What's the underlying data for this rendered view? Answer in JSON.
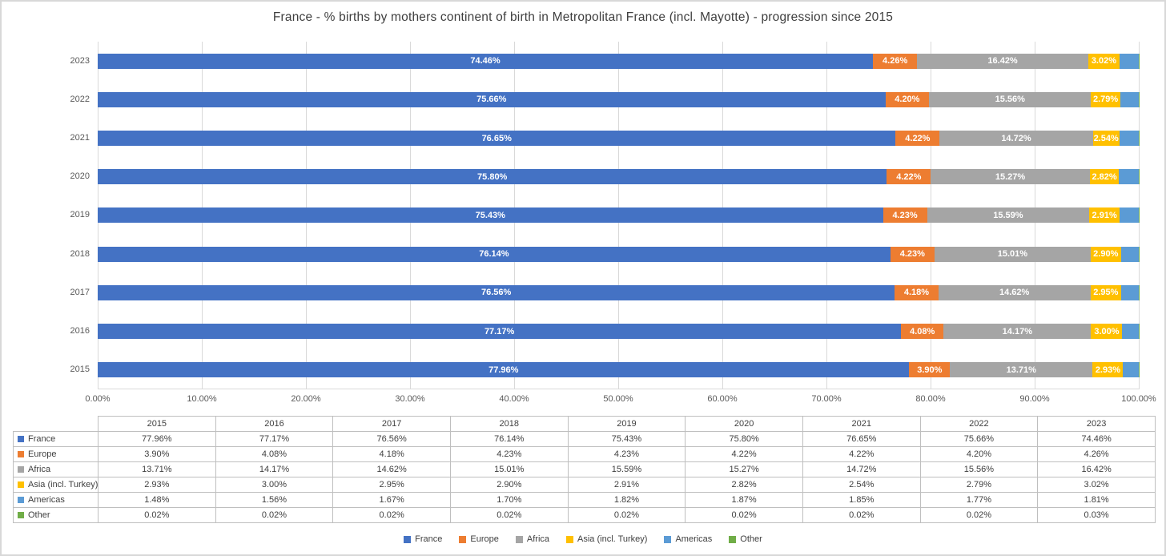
{
  "chart_data": {
    "type": "bar",
    "orientation": "horizontal",
    "stacked": true,
    "title": "France - % births by mothers continent of birth in Metropolitan France (incl. Mayotte) - progression since 2015",
    "categories": [
      "2023",
      "2022",
      "2021",
      "2020",
      "2019",
      "2018",
      "2017",
      "2016",
      "2015"
    ],
    "years": [
      "2015",
      "2016",
      "2017",
      "2018",
      "2019",
      "2020",
      "2021",
      "2022",
      "2023"
    ],
    "x_axis": {
      "ticks": [
        "0.00%",
        "10.00%",
        "20.00%",
        "30.00%",
        "40.00%",
        "50.00%",
        "60.00%",
        "70.00%",
        "80.00%",
        "90.00%",
        "100.00%"
      ],
      "min": 0,
      "max": 100,
      "gridlines": "vertical"
    },
    "legend_position": "bottom",
    "series": [
      {
        "name": "France",
        "color": "#4472C4",
        "show_bar_labels": true,
        "values": [
          "77.96%",
          "77.17%",
          "76.56%",
          "76.14%",
          "75.43%",
          "75.80%",
          "76.65%",
          "75.66%",
          "74.46%"
        ]
      },
      {
        "name": "Europe",
        "color": "#ED7D31",
        "show_bar_labels": true,
        "values": [
          "3.90%",
          "4.08%",
          "4.18%",
          "4.23%",
          "4.23%",
          "4.22%",
          "4.22%",
          "4.20%",
          "4.26%"
        ]
      },
      {
        "name": "Africa",
        "color": "#A5A5A5",
        "show_bar_labels": true,
        "values": [
          "13.71%",
          "14.17%",
          "14.62%",
          "15.01%",
          "15.59%",
          "15.27%",
          "14.72%",
          "15.56%",
          "16.42%"
        ]
      },
      {
        "name": "Asia (incl. Turkey)",
        "color": "#FFC000",
        "show_bar_labels": true,
        "values": [
          "2.93%",
          "3.00%",
          "2.95%",
          "2.90%",
          "2.91%",
          "2.82%",
          "2.54%",
          "2.79%",
          "3.02%"
        ]
      },
      {
        "name": "Americas",
        "color": "#5B9BD5",
        "show_bar_labels": false,
        "values": [
          "1.48%",
          "1.56%",
          "1.67%",
          "1.70%",
          "1.82%",
          "1.87%",
          "1.85%",
          "1.77%",
          "1.81%"
        ]
      },
      {
        "name": "Other",
        "color": "#70AD47",
        "show_bar_labels": false,
        "values": [
          "0.02%",
          "0.02%",
          "0.02%",
          "0.02%",
          "0.02%",
          "0.02%",
          "0.02%",
          "0.02%",
          "0.03%"
        ]
      }
    ]
  }
}
